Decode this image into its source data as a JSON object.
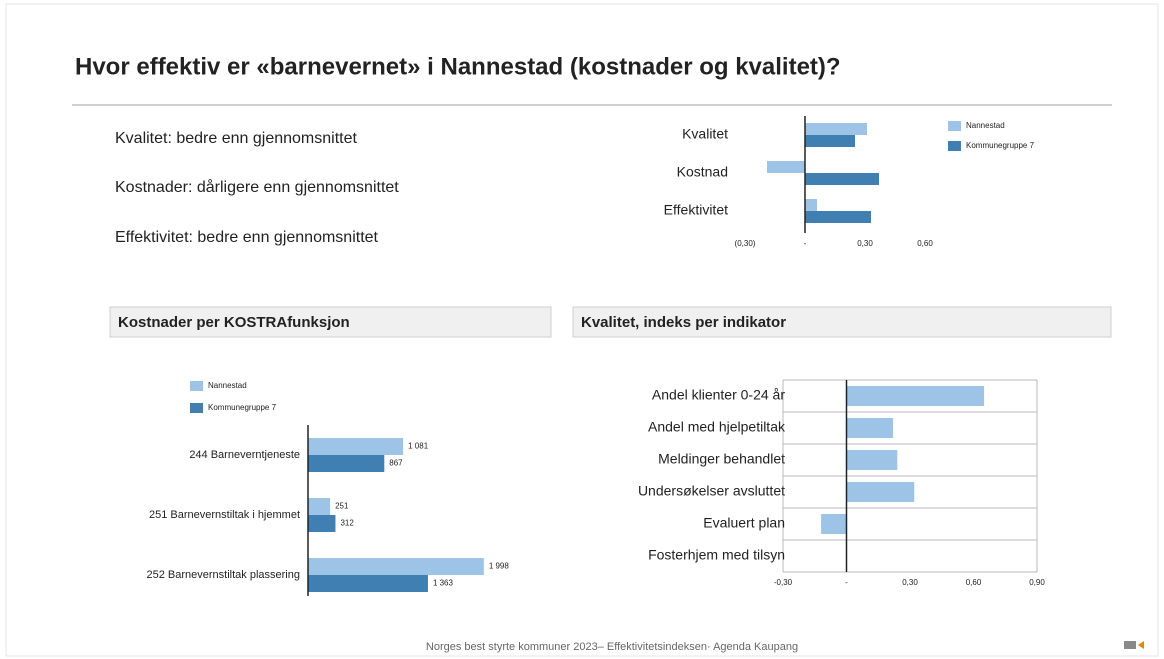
{
  "header": {
    "title": "Hvor effektiv er «barnevernet» i Nannestad (kostnader og kvalitet)?"
  },
  "summary": [
    "Kvalitet: bedre enn gjennomsnittet",
    "Kostnader: dårligere enn gjennomsnittet",
    "Effektivitet: bedre enn gjennomsnittet"
  ],
  "chart_data": [
    {
      "type": "hbar",
      "categories": [
        "Kvalitet",
        "Kostnad",
        "Effektivitet"
      ],
      "series": [
        {
          "name": "Nannestad",
          "color": "#9dc3e6",
          "values": [
            0.31,
            -0.19,
            0.06
          ]
        },
        {
          "name": "Kommunegruppe 7",
          "color": "#3f7fb1",
          "values": [
            0.25,
            0.37,
            0.33
          ]
        }
      ],
      "xlim": [
        -0.35,
        0.65
      ],
      "xticks": [
        {
          "value": -0.3,
          "label": "(0,30)"
        },
        {
          "value": 0,
          "label": "-"
        },
        {
          "value": 0.3,
          "label": "0,30"
        },
        {
          "value": 0.6,
          "label": "0,60"
        }
      ]
    },
    {
      "type": "hbar",
      "title": "Kostnader per KOSTRAfunksjon",
      "categories": [
        "244 Barneverntjeneste",
        "251 Barnevernstiltak i hjemmet",
        "252 Barnevernstiltak plassering"
      ],
      "series": [
        {
          "name": "Nannestad",
          "color": "#9dc3e6",
          "values": [
            1081,
            251,
            1998
          ],
          "value_labels": [
            "1 081",
            "251",
            "1 998"
          ]
        },
        {
          "name": "Kommunegruppe 7",
          "color": "#3f7fb1",
          "values": [
            867,
            312,
            1363
          ],
          "value_labels": [
            "867",
            "312",
            "1 363"
          ]
        }
      ]
    },
    {
      "type": "hbar",
      "title": "Kvalitet, indeks per indikator",
      "categories": [
        "Andel klienter 0-24 år",
        "Andel med hjelpetiltak",
        "Meldinger behandlet",
        "Undersøkelser avsluttet",
        "Evaluert plan",
        "Fosterhjem med tilsyn"
      ],
      "series": [
        {
          "color": "#9dc3e6",
          "values": [
            0.65,
            0.22,
            0.24,
            0.32,
            -0.12,
            null
          ]
        }
      ],
      "xlim": [
        -0.3,
        0.9
      ],
      "xticks": [
        {
          "value": -0.3,
          "label": "-0,30"
        },
        {
          "value": 0,
          "label": "-"
        },
        {
          "value": 0.3,
          "label": "0,30"
        },
        {
          "value": 0.6,
          "label": "0,60"
        },
        {
          "value": 0.9,
          "label": "0,90"
        }
      ]
    }
  ],
  "footer": "Norges best styrte kommuner 2023– Effektivitetsindeksen· Agenda Kaupang"
}
